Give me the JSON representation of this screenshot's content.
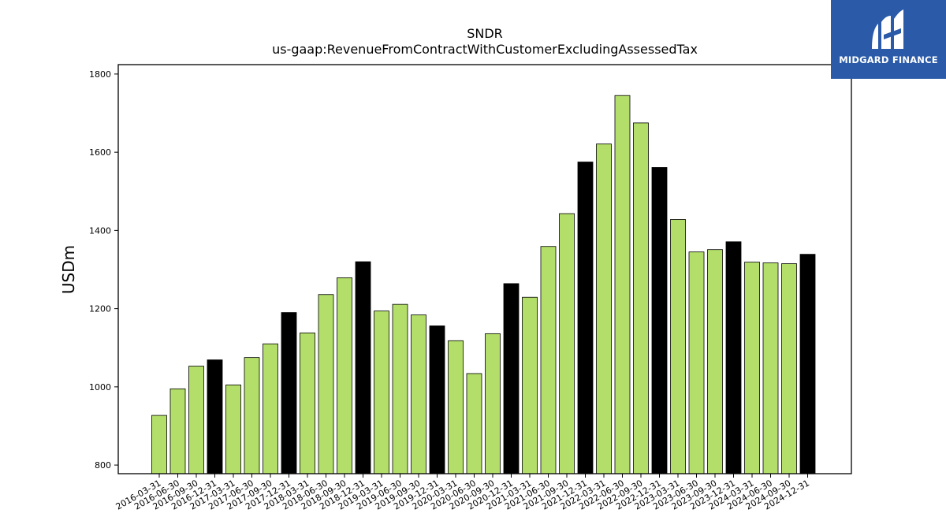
{
  "logo": {
    "text": "MIDGARD FINANCE",
    "icon": "midgard-finance-logo-icon",
    "background": "#2a5aa8"
  },
  "colors": {
    "quarter_bar": "#b3de69",
    "year_end_bar": "#000000",
    "bar_edge": "#000000"
  },
  "chart_data": {
    "type": "bar",
    "title": "SNDR",
    "subtitle": "us-gaap:RevenueFromContractWithCustomerExcludingAssessedTax",
    "xlabel": "",
    "ylabel": "USDm",
    "ylim": [
      778,
      1824
    ],
    "yticks": [
      800,
      1000,
      1200,
      1400,
      1600,
      1800
    ],
    "grid": false,
    "categories": [
      "2016-03-31",
      "2016-06-30",
      "2016-09-30",
      "2016-12-31",
      "2017-03-31",
      "2017-06-30",
      "2017-09-30",
      "2017-12-31",
      "2018-03-31",
      "2018-06-30",
      "2018-09-30",
      "2018-12-31",
      "2019-03-31",
      "2019-06-30",
      "2019-09-30",
      "2019-12-31",
      "2020-03-31",
      "2020-06-30",
      "2020-09-30",
      "2020-12-31",
      "2021-03-31",
      "2021-06-30",
      "2021-09-30",
      "2021-12-31",
      "2022-03-31",
      "2022-06-30",
      "2022-09-30",
      "2022-12-31",
      "2023-03-31",
      "2023-06-30",
      "2023-09-30",
      "2023-12-31",
      "2024-03-31",
      "2024-06-30",
      "2024-09-30",
      "2024-12-31"
    ],
    "values": [
      927,
      995,
      1053,
      1069,
      1005,
      1075,
      1110,
      1190,
      1138,
      1236,
      1279,
      1320,
      1194,
      1211,
      1184,
      1156,
      1118,
      1034,
      1136,
      1264,
      1229,
      1359,
      1443,
      1575,
      1621,
      1745,
      1675,
      1561,
      1428,
      1345,
      1351,
      1371,
      1319,
      1317,
      1315,
      1339
    ],
    "highlight": [
      "2016-12-31",
      "2017-12-31",
      "2018-12-31",
      "2019-12-31",
      "2020-12-31",
      "2021-12-31",
      "2022-12-31",
      "2023-12-31",
      "2024-12-31"
    ]
  }
}
